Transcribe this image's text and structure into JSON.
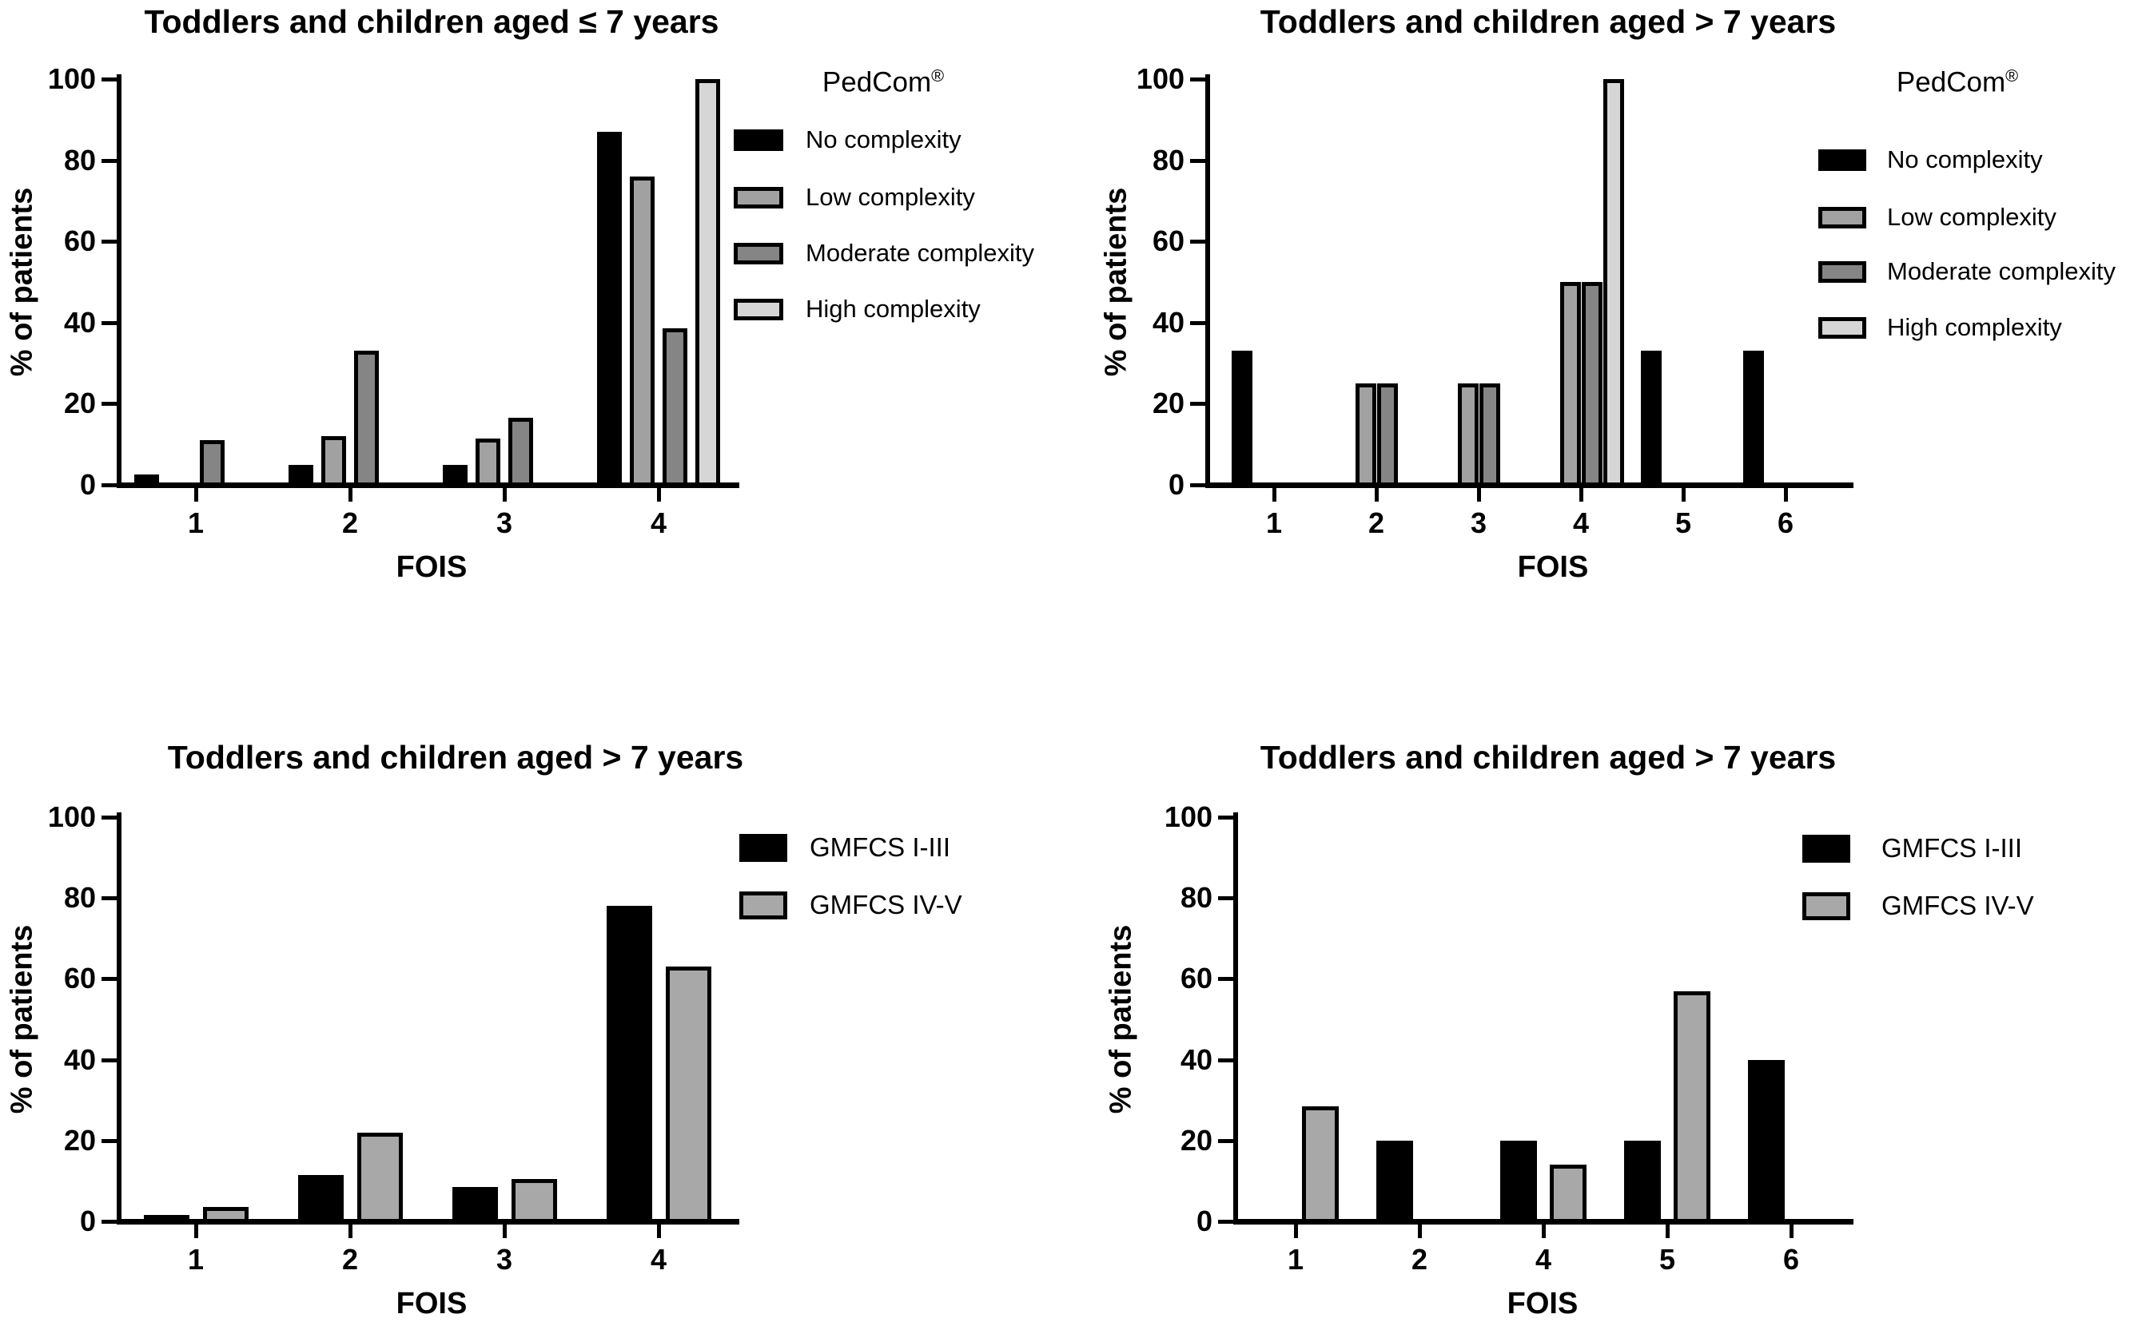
{
  "figure": {
    "background": "#ffffff"
  },
  "colors": {
    "black": "#000000",
    "low": "#a1a1a1",
    "moderate": "#858585",
    "high": "#d6d6d6",
    "gmfcs_iv_v": "#a8a8a8",
    "axis": "#000000"
  },
  "chart_data": [
    {
      "id": "top-left",
      "type": "bar",
      "title": "Toddlers and children aged ≤ 7 years",
      "xlabel": "FOIS",
      "ylabel": "% of patients",
      "ylim": [
        0,
        100
      ],
      "yticks": [
        0,
        20,
        40,
        60,
        80,
        100
      ],
      "categories": [
        "1",
        "2",
        "3",
        "4"
      ],
      "grid": false,
      "legend": {
        "title_text": "PedCom",
        "title_sup": "®",
        "position": "right-of-plot"
      },
      "series": [
        {
          "name": "No complexity",
          "color": "black",
          "values": [
            2.5,
            5,
            5,
            87
          ]
        },
        {
          "name": "Low complexity",
          "color": "low",
          "values": [
            0,
            12,
            11.5,
            76
          ]
        },
        {
          "name": "Moderate complexity",
          "color": "moderate",
          "values": [
            11,
            33,
            16.5,
            38.5
          ]
        },
        {
          "name": "High complexity",
          "color": "high",
          "values": [
            0,
            0,
            0,
            100
          ]
        }
      ]
    },
    {
      "id": "top-right",
      "type": "bar",
      "title": "Toddlers and children aged > 7 years",
      "xlabel": "FOIS",
      "ylabel": "% of patients",
      "ylim": [
        0,
        100
      ],
      "yticks": [
        0,
        20,
        40,
        60,
        80,
        100
      ],
      "categories": [
        "1",
        "2",
        "3",
        "4",
        "5",
        "6"
      ],
      "grid": false,
      "legend": {
        "title_text": "PedCom",
        "title_sup": "®",
        "position": "right-of-plot"
      },
      "series": [
        {
          "name": "No complexity",
          "color": "black",
          "values": [
            33,
            0,
            0,
            0,
            33,
            33
          ]
        },
        {
          "name": "Low complexity",
          "color": "low",
          "values": [
            0,
            25,
            25,
            50,
            0,
            0
          ]
        },
        {
          "name": "Moderate complexity",
          "color": "moderate",
          "values": [
            0,
            25,
            25,
            50,
            0,
            0
          ]
        },
        {
          "name": "High complexity",
          "color": "high",
          "values": [
            0,
            0,
            0,
            100,
            0,
            0
          ]
        }
      ]
    },
    {
      "id": "bottom-left",
      "type": "bar",
      "title": "Toddlers and children aged > 7 years",
      "xlabel": "FOIS",
      "ylabel": "% of patients",
      "ylim": [
        0,
        100
      ],
      "yticks": [
        0,
        20,
        40,
        60,
        80,
        100
      ],
      "categories": [
        "1",
        "2",
        "3",
        "4"
      ],
      "grid": false,
      "legend": {
        "position": "right-of-plot"
      },
      "series": [
        {
          "name": "GMFCS I-III",
          "color": "black",
          "values": [
            1.5,
            11.5,
            8.5,
            78
          ]
        },
        {
          "name": "GMFCS IV-V",
          "color": "gmfcs_iv_v",
          "values": [
            3.5,
            22,
            10.5,
            63
          ]
        }
      ]
    },
    {
      "id": "bottom-right",
      "type": "bar",
      "title": "Toddlers and children aged > 7 years",
      "xlabel": "FOIS",
      "ylabel": "% of patients",
      "ylim": [
        0,
        100
      ],
      "yticks": [
        0,
        20,
        40,
        60,
        80,
        100
      ],
      "categories": [
        "1",
        "2",
        "4",
        "5",
        "6"
      ],
      "grid": false,
      "legend": {
        "position": "right-of-plot"
      },
      "series": [
        {
          "name": "GMFCS I-III",
          "color": "black",
          "values": [
            0,
            20,
            20,
            20,
            40
          ]
        },
        {
          "name": "GMFCS IV-V",
          "color": "gmfcs_iv_v",
          "values": [
            28.5,
            0,
            14,
            57,
            0
          ]
        }
      ]
    }
  ]
}
